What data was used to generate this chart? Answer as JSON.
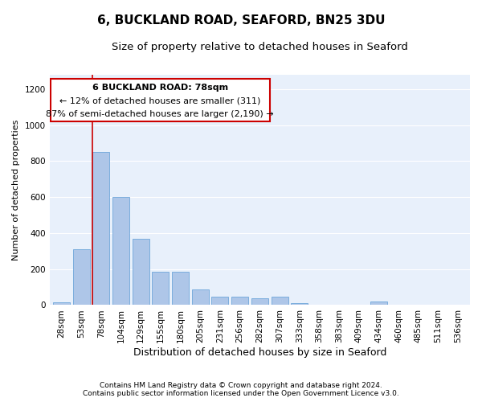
{
  "title1": "6, BUCKLAND ROAD, SEAFORD, BN25 3DU",
  "title2": "Size of property relative to detached houses in Seaford",
  "xlabel": "Distribution of detached houses by size in Seaford",
  "ylabel": "Number of detached properties",
  "categories": [
    "28sqm",
    "53sqm",
    "78sqm",
    "104sqm",
    "129sqm",
    "155sqm",
    "180sqm",
    "205sqm",
    "231sqm",
    "256sqm",
    "282sqm",
    "307sqm",
    "333sqm",
    "358sqm",
    "383sqm",
    "409sqm",
    "434sqm",
    "460sqm",
    "485sqm",
    "511sqm",
    "536sqm"
  ],
  "values": [
    15,
    310,
    850,
    600,
    370,
    185,
    185,
    85,
    45,
    45,
    40,
    45,
    10,
    0,
    0,
    0,
    20,
    0,
    0,
    0,
    0
  ],
  "bar_color": "#aec6e8",
  "bar_edge_color": "#5b9bd5",
  "highlight_index": 2,
  "highlight_color": "#cc0000",
  "ylim": [
    0,
    1280
  ],
  "yticks": [
    0,
    200,
    400,
    600,
    800,
    1000,
    1200
  ],
  "annotation_title": "6 BUCKLAND ROAD: 78sqm",
  "annotation_line1": "← 12% of detached houses are smaller (311)",
  "annotation_line2": "87% of semi-detached houses are larger (2,190) →",
  "footer1": "Contains HM Land Registry data © Crown copyright and database right 2024.",
  "footer2": "Contains public sector information licensed under the Open Government Licence v3.0.",
  "bg_color": "#ffffff",
  "plot_bg_color": "#e8f0fb",
  "grid_color": "#ffffff",
  "title1_fontsize": 11,
  "title2_fontsize": 9.5,
  "xlabel_fontsize": 9,
  "ylabel_fontsize": 8,
  "tick_fontsize": 7.5,
  "annotation_fontsize": 8,
  "footer_fontsize": 6.5
}
